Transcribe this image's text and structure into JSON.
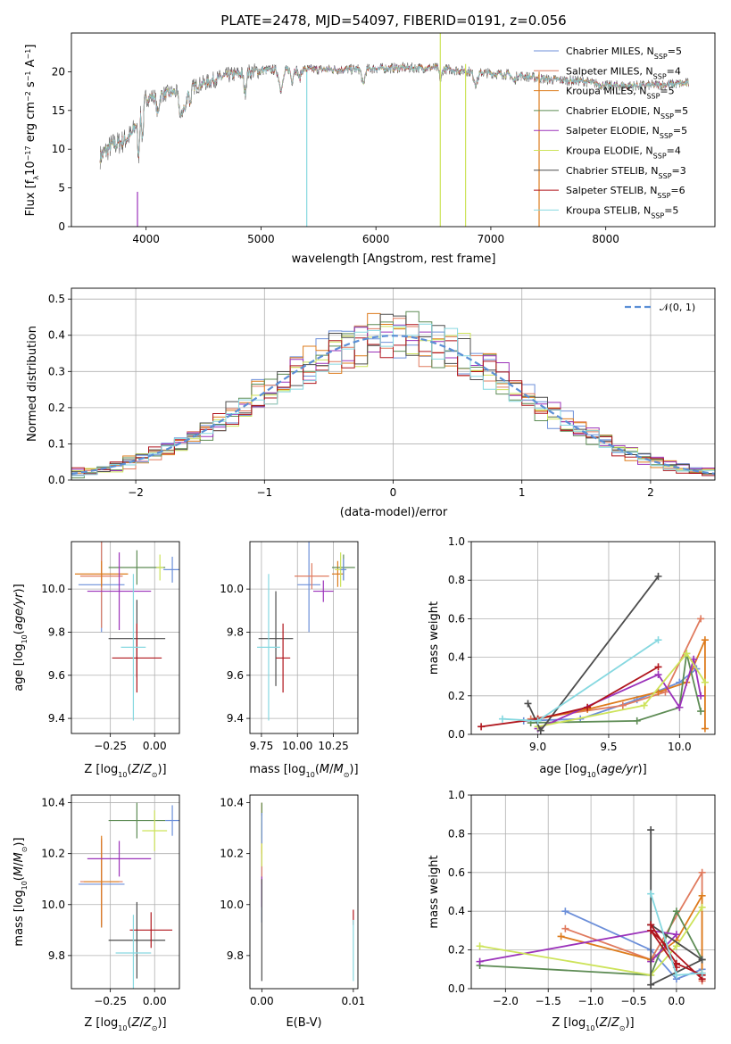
{
  "figure": {
    "title": "PLATE=2478, MJD=54097, FIBERID=0191, z=0.056"
  },
  "models": [
    {
      "name": "Chabrier MILES, N_SSP=5",
      "imf": "Chabrier",
      "lib": "MILES",
      "nssp": "5",
      "color": "#6c8fd9"
    },
    {
      "name": "Salpeter MILES, N_SSP=4",
      "imf": "Salpeter",
      "lib": "MILES",
      "nssp": "4",
      "color": "#e07b5f"
    },
    {
      "name": "Kroupa MILES, N_SSP=5",
      "imf": "Kroupa",
      "lib": "MILES",
      "nssp": "5",
      "color": "#dd7b1c"
    },
    {
      "name": "Chabrier ELODIE, N_SSP=5",
      "imf": "Chabrier",
      "lib": "ELODIE",
      "nssp": "5",
      "color": "#5e8c55"
    },
    {
      "name": "Salpeter ELODIE, N_SSP=5",
      "imf": "Salpeter",
      "lib": "ELODIE",
      "nssp": "5",
      "color": "#9b32ba"
    },
    {
      "name": "Kroupa ELODIE, N_SSP=4",
      "imf": "Kroupa",
      "lib": "ELODIE",
      "nssp": "4",
      "color": "#cde35a"
    },
    {
      "name": "Chabrier STELIB, N_SSP=3",
      "imf": "Chabrier",
      "lib": "STELIB",
      "nssp": "3",
      "color": "#4d4d4d"
    },
    {
      "name": "Salpeter STELIB, N_SSP=6",
      "imf": "Salpeter",
      "lib": "STELIB",
      "nssp": "6",
      "color": "#b0151c"
    },
    {
      "name": "Kroupa STELIB, N_SSP=5",
      "imf": "Kroupa",
      "lib": "STELIB",
      "nssp": "5",
      "color": "#86d8e0"
    }
  ],
  "chart_data": [
    {
      "id": "spectrum",
      "type": "line",
      "xlabel": "wavelength [Angstrom, rest frame]",
      "ylabel_parts": [
        "Flux [f",
        "λ",
        "10",
        "−17",
        " erg cm",
        "−2",
        " s",
        "−1",
        " A",
        "−1",
        "]"
      ],
      "xlim": [
        3350,
        8950
      ],
      "ylim": [
        0,
        25
      ],
      "xticks": [
        4000,
        5000,
        6000,
        7000,
        8000
      ],
      "yticks": [
        0,
        5,
        10,
        15,
        20
      ],
      "continuum": [
        [
          3600,
          9
        ],
        [
          3700,
          10.5
        ],
        [
          3800,
          11
        ],
        [
          3880,
          12
        ],
        [
          3950,
          15
        ],
        [
          4000,
          16.5
        ],
        [
          4100,
          17
        ],
        [
          4300,
          17.5
        ],
        [
          4500,
          18.5
        ],
        [
          4700,
          19.5
        ],
        [
          5000,
          20.2
        ],
        [
          5200,
          20.3
        ],
        [
          5500,
          20.3
        ],
        [
          5800,
          20.3
        ],
        [
          6200,
          20.5
        ],
        [
          6500,
          20.5
        ],
        [
          6700,
          20.2
        ],
        [
          7000,
          19.8
        ],
        [
          7200,
          19.6
        ],
        [
          7500,
          19
        ],
        [
          7800,
          18.8
        ],
        [
          8000,
          18.2
        ],
        [
          8300,
          18.2
        ],
        [
          8700,
          18.5
        ]
      ],
      "absorption_lines": [
        [
          3934,
          5.0,
          12
        ],
        [
          3969,
          4.0,
          12
        ],
        [
          4102,
          2.5,
          15
        ],
        [
          4304,
          3.5,
          22
        ],
        [
          4341,
          2.5,
          15
        ],
        [
          4383,
          2.0,
          12
        ],
        [
          4861,
          2.5,
          15
        ],
        [
          5175,
          2.5,
          25
        ],
        [
          5270,
          1.5,
          14
        ],
        [
          5335,
          1.2,
          14
        ],
        [
          5890,
          2.0,
          18
        ],
        [
          6563,
          1.5,
          14
        ],
        [
          6870,
          1.5,
          25
        ],
        [
          7200,
          0.8,
          20
        ]
      ],
      "spikes": [
        [
          3925,
          4.5
        ],
        [
          5398,
          20
        ],
        [
          6560,
          25
        ],
        [
          6780,
          21
        ],
        [
          7420,
          20
        ]
      ],
      "legend_position": "upper right"
    },
    {
      "id": "residuals",
      "type": "histogram",
      "xlabel": "(data-model)/error",
      "ylabel": "Normed distribution",
      "xlim": [
        -2.5,
        2.5
      ],
      "ylim": [
        0,
        0.53
      ],
      "xticks": [
        -2,
        -1,
        0,
        1,
        2
      ],
      "yticks": [
        0.0,
        0.1,
        0.2,
        0.3,
        0.4,
        0.5
      ],
      "bin_width": 0.1,
      "gaussian_label": "𝒩(0, 1)",
      "gaussian_color": "#5b8fd6",
      "legend_position": "upper right",
      "grid": true
    },
    {
      "id": "age_vs_Z",
      "type": "errorbar",
      "xlabel": "Z [log10(Z/Z⊙)]",
      "ylabel": "age  [log10(age/yr)]",
      "xlim": [
        -0.47,
        0.14
      ],
      "ylim": [
        9.33,
        10.22
      ],
      "xticks": [
        -0.25,
        0.0
      ],
      "yticks": [
        9.4,
        9.6,
        9.8,
        10.0
      ],
      "points": [
        {
          "x": -0.3,
          "y": 10.02,
          "xerr": 0.13,
          "yerr": 0.22
        },
        {
          "x": -0.3,
          "y": 10.06,
          "xerr": 0.12,
          "yerr": 0.24
        },
        {
          "x": -0.3,
          "y": 10.07,
          "xerr": 0.15,
          "yerr": 0.06
        },
        {
          "x": -0.1,
          "y": 10.1,
          "xerr": 0.16,
          "yerr": 0.08
        },
        {
          "x": -0.2,
          "y": 9.99,
          "xerr": 0.18,
          "yerr": 0.18
        },
        {
          "x": 0.03,
          "y": 10.1,
          "xerr": 0.02,
          "yerr": 0.06
        },
        {
          "x": -0.1,
          "y": 9.77,
          "xerr": 0.16,
          "yerr": 0.18
        },
        {
          "x": -0.1,
          "y": 9.68,
          "xerr": 0.14,
          "yerr": 0.16
        },
        {
          "x": -0.12,
          "y": 9.73,
          "xerr": 0.07,
          "yerr": 0.34
        },
        {
          "x": 0.1,
          "y": 10.09,
          "xerr": 0.05,
          "yerr": 0.06
        }
      ],
      "grid": true
    },
    {
      "id": "age_vs_mass",
      "type": "errorbar",
      "xlabel": "mass [log10(M/M⊙)]",
      "ylabel": "",
      "xlim": [
        9.67,
        10.42
      ],
      "ylim": [
        9.33,
        10.22
      ],
      "xticks": [
        9.75,
        10.0,
        10.25
      ],
      "yticks": [
        9.4,
        9.6,
        9.8,
        10.0
      ],
      "points": [
        {
          "x": 10.08,
          "y": 10.02,
          "xerr": 0.08,
          "yerr": 0.22
        },
        {
          "x": 10.1,
          "y": 10.06,
          "xerr": 0.12,
          "yerr": 0.06
        },
        {
          "x": 10.28,
          "y": 10.07,
          "xerr": 0.04,
          "yerr": 0.06
        },
        {
          "x": 10.32,
          "y": 10.1,
          "xerr": 0.08,
          "yerr": 0.06
        },
        {
          "x": 10.18,
          "y": 9.99,
          "xerr": 0.07,
          "yerr": 0.05
        },
        {
          "x": 10.3,
          "y": 10.09,
          "xerr": 0.04,
          "yerr": 0.08
        },
        {
          "x": 9.85,
          "y": 9.77,
          "xerr": 0.12,
          "yerr": 0.22
        },
        {
          "x": 9.9,
          "y": 9.68,
          "xerr": 0.05,
          "yerr": 0.16
        },
        {
          "x": 9.8,
          "y": 9.73,
          "xerr": 0.08,
          "yerr": 0.34
        },
        {
          "x": 10.32,
          "y": 10.09,
          "xerr": 0.02,
          "yerr": 0.05
        }
      ],
      "grid": true
    },
    {
      "id": "mass_weight_vs_age",
      "type": "line",
      "xlabel": "age  [log10(age/yr)]",
      "ylabel": "mass weight",
      "xlim": [
        8.53,
        10.25
      ],
      "ylim": [
        0,
        1
      ],
      "xticks": [
        9.0,
        9.5,
        10.0
      ],
      "yticks": [
        0.0,
        0.2,
        0.4,
        0.6,
        0.8,
        1.0
      ],
      "series": [
        {
          "model": 0,
          "x": [
            8.9,
            9.3,
            9.7,
            10.0,
            10.12
          ],
          "y": [
            0.07,
            0.08,
            0.18,
            0.27,
            0.34
          ]
        },
        {
          "model": 1,
          "x": [
            8.95,
            9.6,
            9.9,
            10.15
          ],
          "y": [
            0.08,
            0.15,
            0.22,
            0.6
          ]
        },
        {
          "model": 2,
          "x": [
            9.0,
            9.35,
            9.85,
            10.05,
            10.18,
            10.18
          ],
          "y": [
            0.08,
            0.13,
            0.22,
            0.27,
            0.49,
            0.03
          ]
        },
        {
          "model": 3,
          "x": [
            8.95,
            9.7,
            10.0,
            10.05,
            10.15
          ],
          "y": [
            0.06,
            0.07,
            0.14,
            0.42,
            0.12
          ]
        },
        {
          "model": 4,
          "x": [
            9.0,
            9.85,
            10.0,
            10.1,
            10.15
          ],
          "y": [
            0.03,
            0.31,
            0.14,
            0.39,
            0.2
          ]
        },
        {
          "model": 5,
          "x": [
            9.0,
            9.75,
            10.05,
            10.18
          ],
          "y": [
            0.04,
            0.15,
            0.42,
            0.27
          ]
        },
        {
          "model": 6,
          "x": [
            8.93,
            9.02,
            9.85
          ],
          "y": [
            0.16,
            0.02,
            0.82
          ]
        },
        {
          "model": 7,
          "x": [
            8.6,
            9.0,
            9.35,
            9.85
          ],
          "y": [
            0.04,
            0.08,
            0.14,
            0.35
          ]
        },
        {
          "model": 8,
          "x": [
            8.75,
            9.0,
            9.85
          ],
          "y": [
            0.08,
            0.07,
            0.49
          ]
        }
      ],
      "grid": true
    },
    {
      "id": "mass_vs_Z",
      "type": "errorbar",
      "xlabel": "Z [log10(Z/Z⊙)]",
      "ylabel": "mass [log10(M/M⊙)]",
      "xlim": [
        -0.47,
        0.14
      ],
      "ylim": [
        9.67,
        10.43
      ],
      "xticks": [
        -0.25,
        0.0
      ],
      "yticks": [
        9.8,
        10.0,
        10.2,
        10.4
      ],
      "points": [
        {
          "x": -0.3,
          "y": 10.08,
          "xerr": 0.13,
          "yerr": 0.17
        },
        {
          "x": -0.3,
          "y": 10.09,
          "xerr": 0.12,
          "yerr": 0.17
        },
        {
          "x": -0.3,
          "y": 10.09,
          "xerr": 0.1,
          "yerr": 0.18
        },
        {
          "x": -0.1,
          "y": 10.33,
          "xerr": 0.16,
          "yerr": 0.07
        },
        {
          "x": -0.2,
          "y": 10.18,
          "xerr": 0.18,
          "yerr": 0.07
        },
        {
          "x": -0.0,
          "y": 10.29,
          "xerr": 0.07,
          "yerr": 0.08
        },
        {
          "x": -0.1,
          "y": 9.86,
          "xerr": 0.16,
          "yerr": 0.15
        },
        {
          "x": -0.02,
          "y": 9.9,
          "xerr": 0.12,
          "yerr": 0.07
        },
        {
          "x": -0.12,
          "y": 9.81,
          "xerr": 0.1,
          "yerr": 0.15
        },
        {
          "x": 0.1,
          "y": 10.33,
          "xerr": 0.04,
          "yerr": 0.06
        }
      ],
      "grid": true
    },
    {
      "id": "mass_vs_ebv",
      "type": "errorbar",
      "xlabel": "E(B-V)",
      "ylabel": "",
      "xlim": [
        -0.0013,
        0.0105
      ],
      "ylim": [
        9.67,
        10.43
      ],
      "xticks": [
        0.0,
        0.01
      ],
      "yticks": [
        9.8,
        10.0,
        10.2,
        10.4
      ],
      "points": [
        {
          "x": 0.0,
          "y": 10.08,
          "xerr": 0,
          "yerr": 0.15
        },
        {
          "x": 0.0,
          "y": 10.2,
          "xerr": 0,
          "yerr": 0.12
        },
        {
          "x": 0.0,
          "y": 10.3,
          "xerr": 0,
          "yerr": 0.1
        },
        {
          "x": 0.0,
          "y": 10.33,
          "xerr": 0,
          "yerr": 0.07
        },
        {
          "x": 0.0,
          "y": 10.05,
          "xerr": 0,
          "yerr": 0.06
        },
        {
          "x": 0.0,
          "y": 10.25,
          "xerr": 0,
          "yerr": 0.1
        },
        {
          "x": 0.0,
          "y": 9.9,
          "xerr": 0,
          "yerr": 0.2
        },
        {
          "x": 0.01,
          "y": 9.95,
          "xerr": 0,
          "yerr": 0.03
        },
        {
          "x": 0.01,
          "y": 9.82,
          "xerr": 0,
          "yerr": 0.12
        },
        {
          "x": 0.0,
          "y": 10.3,
          "xerr": 0,
          "yerr": 0.06
        }
      ],
      "grid": false
    },
    {
      "id": "mass_weight_vs_Z",
      "type": "line",
      "xlabel": "Z [log10(Z/Z⊙)]",
      "ylabel": "mass weight",
      "xlim": [
        -2.4,
        0.45
      ],
      "ylim": [
        0,
        1
      ],
      "xticks": [
        -2.0,
        -1.5,
        -1.0,
        -0.5,
        0.0
      ],
      "yticks": [
        0.0,
        0.2,
        0.4,
        0.6,
        0.8,
        1.0
      ],
      "series": [
        {
          "model": 0,
          "x": [
            -1.3,
            -0.3,
            0.0,
            0.3
          ],
          "y": [
            0.4,
            0.2,
            0.05,
            0.1
          ]
        },
        {
          "model": 1,
          "x": [
            -1.3,
            -0.3,
            0.3,
            0.3
          ],
          "y": [
            0.31,
            0.15,
            0.6,
            0.04
          ]
        },
        {
          "model": 2,
          "x": [
            -1.35,
            -0.3,
            0.0,
            0.3,
            0.3
          ],
          "y": [
            0.27,
            0.15,
            0.25,
            0.48,
            0.08
          ]
        },
        {
          "model": 3,
          "x": [
            -2.3,
            -0.3,
            0.0,
            0.3
          ],
          "y": [
            0.12,
            0.07,
            0.4,
            0.15
          ]
        },
        {
          "model": 4,
          "x": [
            -2.3,
            -0.3,
            0.0,
            -0.3
          ],
          "y": [
            0.14,
            0.3,
            0.28,
            0.14
          ]
        },
        {
          "model": 5,
          "x": [
            -2.3,
            -0.3,
            0.0,
            0.3
          ],
          "y": [
            0.22,
            0.07,
            0.22,
            0.42
          ]
        },
        {
          "model": 6,
          "x": [
            -0.3,
            -0.3,
            0.3,
            -0.3
          ],
          "y": [
            0.82,
            0.02,
            0.15,
            0.33
          ]
        },
        {
          "model": 7,
          "x": [
            -0.3,
            0.0,
            0.3,
            0.3,
            -0.3,
            0.0
          ],
          "y": [
            0.33,
            0.13,
            0.07,
            0.05,
            0.3,
            0.11
          ]
        },
        {
          "model": 8,
          "x": [
            -0.3,
            0.0,
            0.3
          ],
          "y": [
            0.49,
            0.07,
            0.08
          ]
        }
      ],
      "grid": true
    }
  ]
}
